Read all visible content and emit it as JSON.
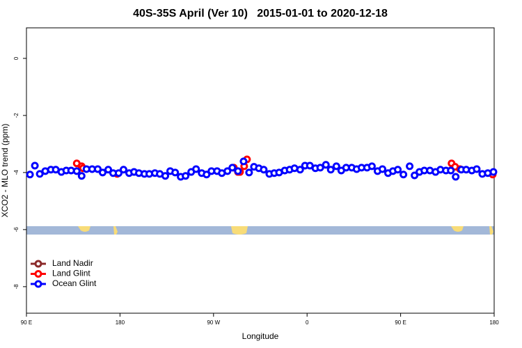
{
  "chart_data": {
    "type": "scatter",
    "title": "40S-35S April (Ver 10)   2015-01-01 to 2020-12-18",
    "x_label": "Longitude",
    "y_label": "XCO2 - MLO trend (ppm)",
    "xlim": [
      90,
      540
    ],
    "ylim": [
      -8.93,
      1.07
    ],
    "xticks": [
      {
        "value": 90,
        "label": "90 E"
      },
      180,
      {
        "value": 270,
        "label": "90 W"
      },
      {
        "value": 360,
        "label": "0"
      },
      {
        "value": 450,
        "label": "90 E"
      },
      {
        "value": 540,
        "label": "180"
      }
    ],
    "yticks": [
      0,
      -2,
      -4,
      -6,
      -8
    ],
    "legend": "bottom-left",
    "series": [
      {
        "name": "Land Nadir",
        "color": "#8b2a2a",
        "x": [],
        "values": []
      },
      {
        "name": "Land Glint",
        "color": "#ff0000",
        "x": [
          138.4,
          143.1,
          144.4,
          177.3,
          289.5,
          293.5,
          295.5,
          299.5,
          302.2,
          499,
          502.4,
          507.1,
          538.6
        ],
        "values": [
          -3.68,
          -3.78,
          -3.85,
          -4.05,
          -3.83,
          -3.98,
          -3.98,
          -3.78,
          -3.54,
          -3.68,
          -3.8,
          -3.88,
          -4.07
        ]
      },
      {
        "name": "Ocean Glint",
        "color": "#0000ff",
        "x": [
          93.4,
          98.1,
          102.8,
          108.1,
          113.5,
          118.2,
          123.6,
          128.3,
          133,
          138.4,
          143.1,
          147.8,
          153.2,
          158.6,
          163.3,
          168.7,
          173.4,
          178.7,
          183.4,
          188.8,
          193.5,
          198.2,
          203.5,
          208.2,
          213.6,
          218.3,
          223.6,
          228.3,
          233.1,
          238.4,
          243.1,
          248.5,
          253.2,
          258.6,
          263.3,
          268,
          273.4,
          278,
          283.4,
          288.1,
          293.5,
          298.9,
          304.2,
          308.9,
          313.6,
          318.3,
          323.7,
          328.4,
          333.1,
          338.5,
          343.2,
          347.9,
          353.3,
          358,
          362.7,
          368,
          372.7,
          378.1,
          382.8,
          388.2,
          392.9,
          397.6,
          403,
          407.7,
          412.4,
          417.7,
          422.4,
          427.8,
          432.5,
          437.9,
          442.6,
          447.3,
          452.7,
          458.7,
          463.4,
          468.1,
          472.8,
          478.2,
          483.6,
          488.3,
          493.6,
          498.3,
          503,
          508.4,
          513.1,
          518.5,
          523.2,
          528.6,
          533.9,
          539.3
        ],
        "values": [
          -4.07,
          -3.76,
          -4.05,
          -3.95,
          -3.9,
          -3.9,
          -3.98,
          -3.93,
          -3.93,
          -3.95,
          -4.12,
          -3.88,
          -3.88,
          -3.88,
          -4,
          -3.9,
          -4.02,
          -4.02,
          -3.9,
          -4.02,
          -3.98,
          -4.02,
          -4.05,
          -4.05,
          -4.02,
          -4.05,
          -4.12,
          -3.95,
          -4,
          -4.15,
          -4.12,
          -3.98,
          -3.88,
          -4.02,
          -4.07,
          -3.95,
          -3.95,
          -4.02,
          -3.95,
          -3.83,
          -3.95,
          -3.61,
          -4,
          -3.8,
          -3.85,
          -3.9,
          -4.05,
          -4.02,
          -4,
          -3.93,
          -3.9,
          -3.85,
          -3.9,
          -3.76,
          -3.76,
          -3.85,
          -3.83,
          -3.73,
          -3.9,
          -3.78,
          -3.93,
          -3.83,
          -3.83,
          -3.88,
          -3.83,
          -3.83,
          -3.78,
          -3.95,
          -3.88,
          -4.02,
          -3.95,
          -3.9,
          -4.07,
          -3.78,
          -4.1,
          -3.98,
          -3.93,
          -3.93,
          -3.98,
          -3.9,
          -3.93,
          -3.93,
          -4.15,
          -3.9,
          -3.9,
          -3.93,
          -3.88,
          -4.05,
          -4.02,
          -3.98
        ]
      }
    ]
  }
}
